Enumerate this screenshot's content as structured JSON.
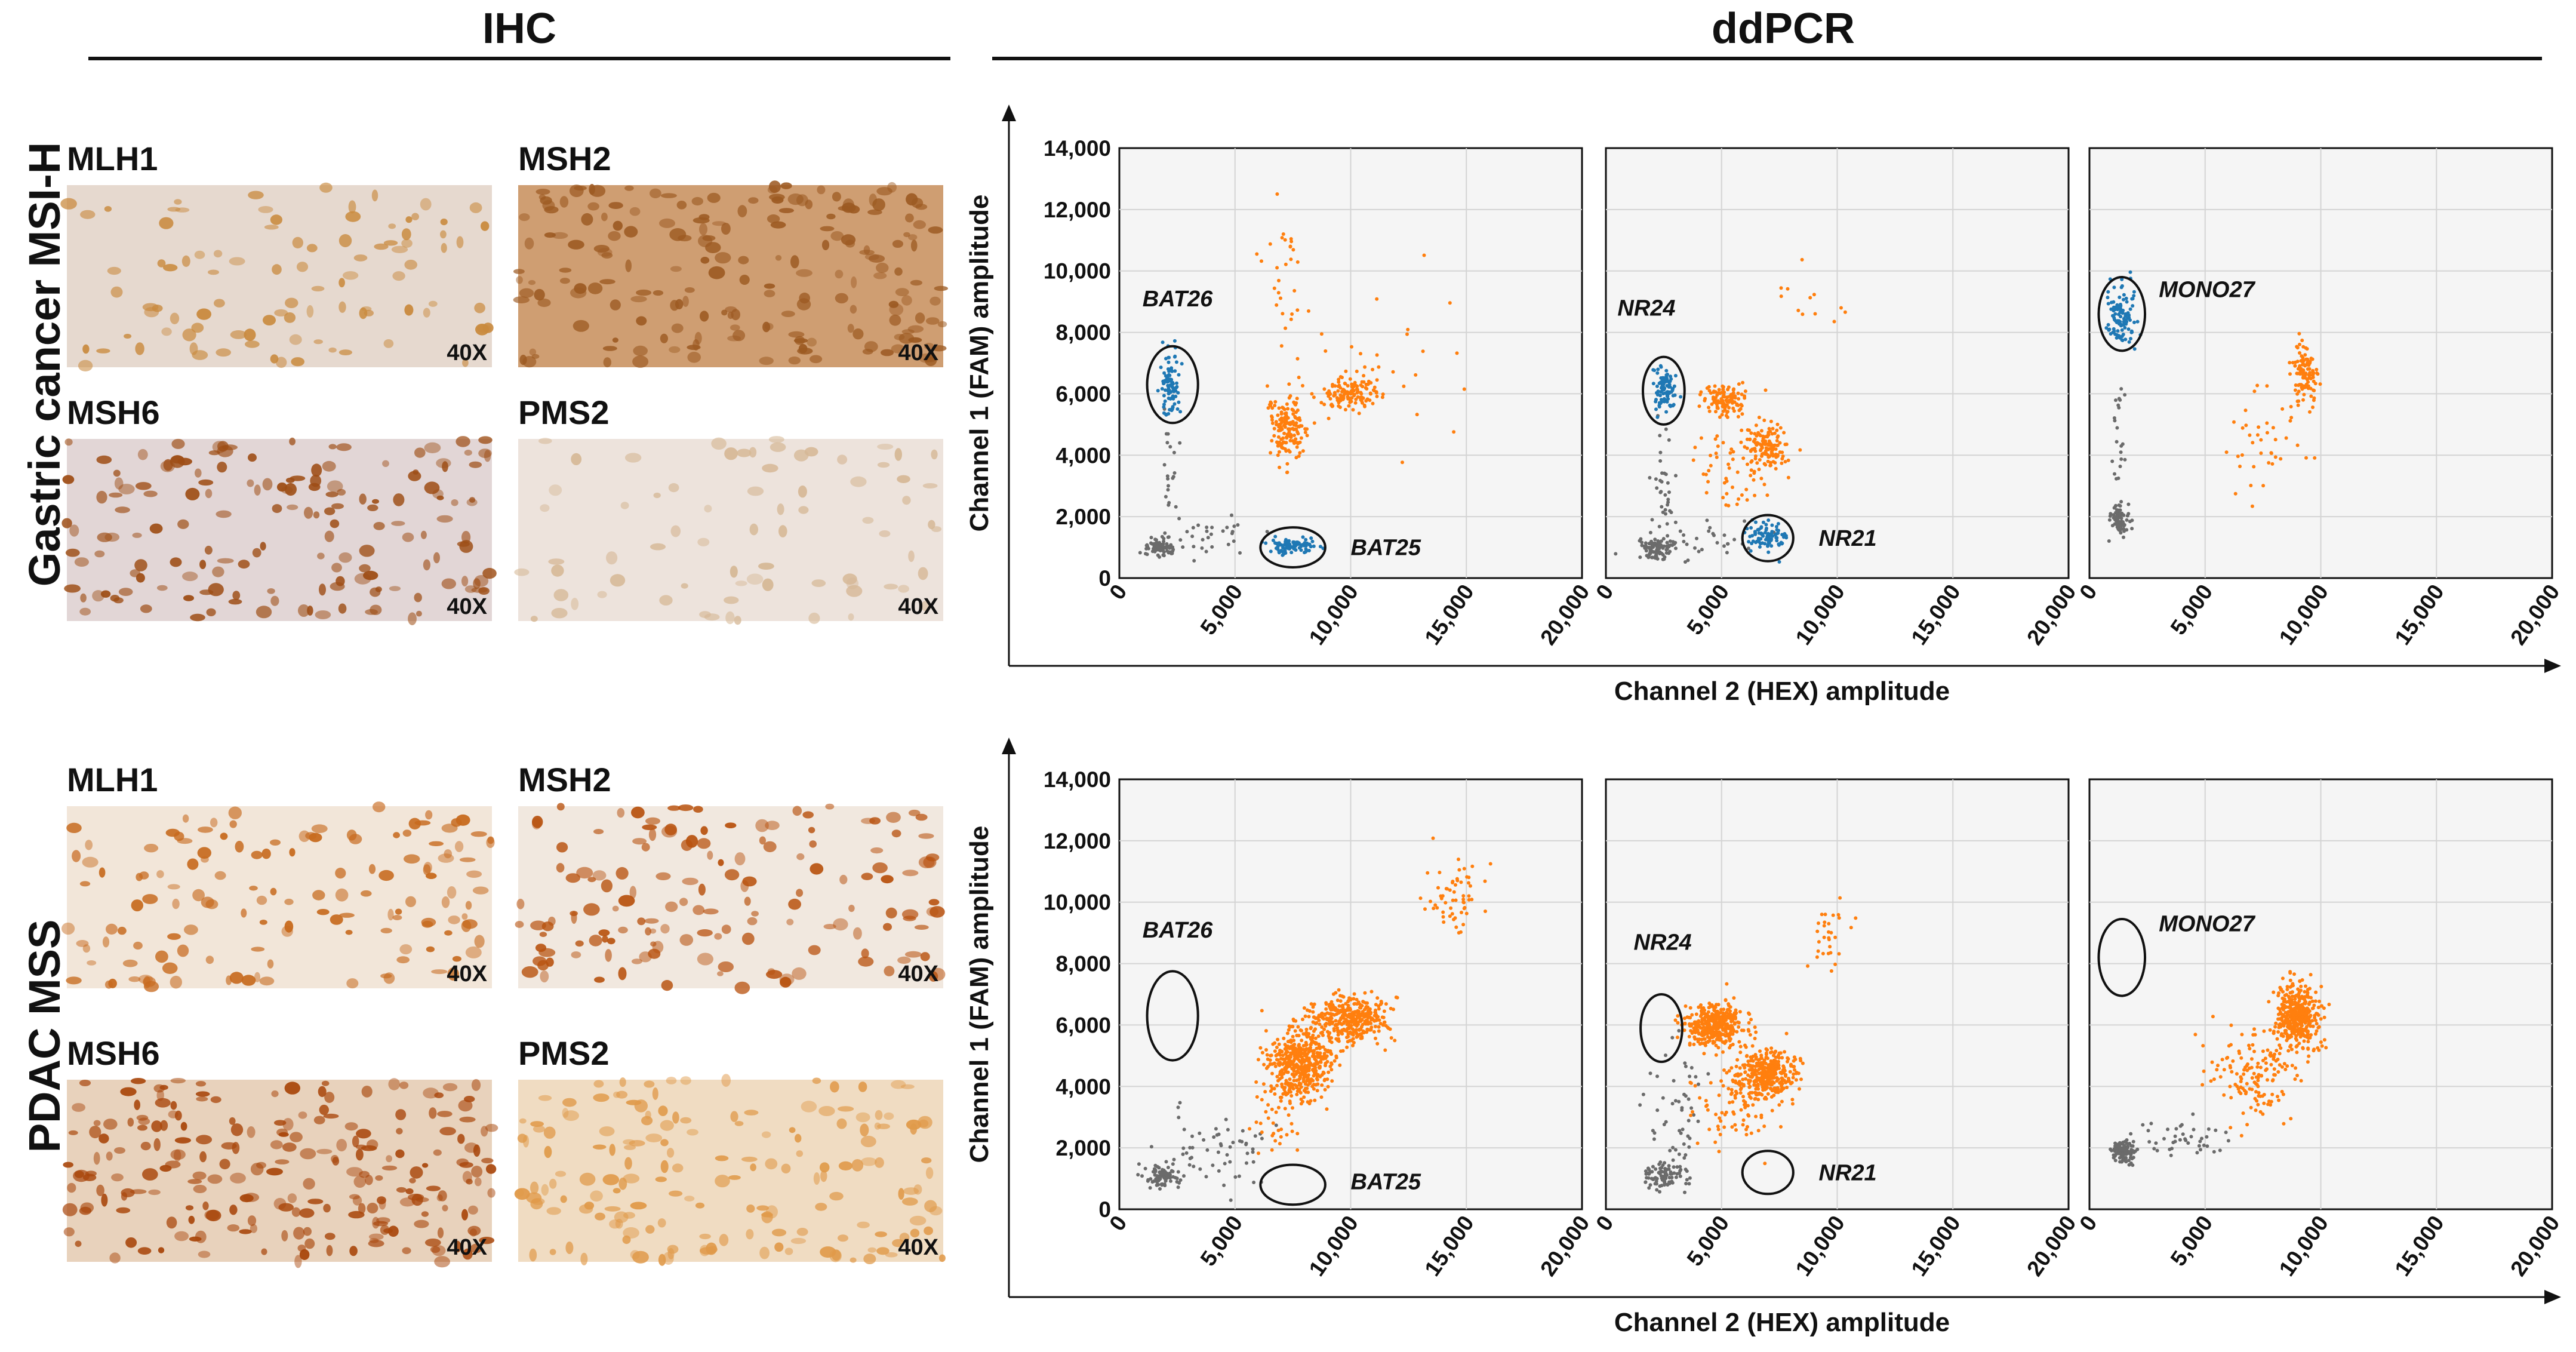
{
  "headers": {
    "ihc": "IHC",
    "ddpcr": "ddPCR"
  },
  "rows": [
    {
      "label": "Gastric cancer MSI-H",
      "ihc": [
        {
          "marker": "MLH1",
          "mag": "40X",
          "base": "#e6d9cf",
          "stain": "#c98a3e",
          "density": 0.25
        },
        {
          "marker": "MSH2",
          "mag": "40X",
          "base": "#cf9e72",
          "stain": "#9c5a22",
          "density": 0.7
        },
        {
          "marker": "MSH6",
          "mag": "40X",
          "base": "#e2d6d6",
          "stain": "#9e4e16",
          "density": 0.55
        },
        {
          "marker": "PMS2",
          "mag": "40X",
          "base": "#ede3dc",
          "stain": "#d6b896",
          "density": 0.15
        }
      ]
    },
    {
      "label": "PDAC MSS",
      "ihc": [
        {
          "marker": "MLH1",
          "mag": "40X",
          "base": "#f2e6d9",
          "stain": "#c76a1e",
          "density": 0.45
        },
        {
          "marker": "MSH2",
          "mag": "40X",
          "base": "#f1e8df",
          "stain": "#b8520f",
          "density": 0.5
        },
        {
          "marker": "MSH6",
          "mag": "40X",
          "base": "#e8d2bc",
          "stain": "#a9470c",
          "density": 0.85
        },
        {
          "marker": "PMS2",
          "mag": "40X",
          "base": "#f0dcc2",
          "stain": "#e09a4a",
          "density": 0.6
        }
      ]
    }
  ],
  "chart_data": [
    {
      "type": "scatter",
      "row": 0,
      "panel": 0,
      "xlabel": "Channel 2 (HEX) amplitude",
      "ylabel": "Channel 1 (FAM) amplitude",
      "xlim": [
        0,
        20000
      ],
      "ylim": [
        0,
        14000
      ],
      "xticks": [
        "0",
        "5,000",
        "10,000",
        "15,000",
        "20,000"
      ],
      "yticks": [
        "0",
        "2,000",
        "4,000",
        "6,000",
        "8,000",
        "10,000",
        "12,000",
        "14,000"
      ],
      "gates": [
        {
          "name": "BAT26",
          "cx": 2300,
          "cy": 6300,
          "rx": 1100,
          "ry": 1250,
          "tx": 1000,
          "ty": 9100
        },
        {
          "name": "BAT25",
          "cx": 7500,
          "cy": 1000,
          "rx": 1400,
          "ry": 650,
          "tx": 10000,
          "ty": 1000
        }
      ],
      "clusters": [
        {
          "color": "#6b6b6b",
          "n": 80,
          "x": 1800,
          "y": 1000,
          "sx": 300,
          "sy": 150
        },
        {
          "color": "#6b6b6b",
          "n": 30,
          "x": 4000,
          "y": 1300,
          "sx": 1200,
          "sy": 400
        },
        {
          "color": "#6b6b6b",
          "n": 20,
          "x": 2200,
          "y": 3500,
          "sx": 200,
          "sy": 800
        },
        {
          "color": "#1f78b4",
          "n": 90,
          "x": 2200,
          "y": 6300,
          "sx": 200,
          "sy": 500
        },
        {
          "color": "#1f78b4",
          "n": 90,
          "x": 7500,
          "y": 1050,
          "sx": 500,
          "sy": 120
        },
        {
          "color": "#ff7f0e",
          "n": 160,
          "x": 7300,
          "y": 4900,
          "sx": 450,
          "sy": 550
        },
        {
          "color": "#ff7f0e",
          "n": 140,
          "x": 10000,
          "y": 6000,
          "sx": 600,
          "sy": 300
        },
        {
          "color": "#ff7f0e",
          "n": 30,
          "x": 7200,
          "y": 9500,
          "sx": 500,
          "sy": 1200
        },
        {
          "color": "#ff7f0e",
          "n": 18,
          "x": 12000,
          "y": 8000,
          "sx": 1800,
          "sy": 1500
        }
      ]
    },
    {
      "type": "scatter",
      "row": 0,
      "panel": 1,
      "xlabel": "Channel 2 (HEX) amplitude",
      "ylabel": "Channel 1 (FAM) amplitude",
      "xlim": [
        0,
        20000
      ],
      "ylim": [
        0,
        14000
      ],
      "xticks": [
        "0",
        "5,000",
        "10,000",
        "15,000",
        "20,000"
      ],
      "yticks": [],
      "gates": [
        {
          "name": "NR24",
          "cx": 2500,
          "cy": 6100,
          "rx": 900,
          "ry": 1100,
          "tx": 500,
          "ty": 8800
        },
        {
          "name": "NR21",
          "cx": 7000,
          "cy": 1300,
          "rx": 1100,
          "ry": 750,
          "tx": 9200,
          "ty": 1300
        }
      ],
      "clusters": [
        {
          "color": "#6b6b6b",
          "n": 80,
          "x": 2200,
          "y": 1000,
          "sx": 400,
          "sy": 180
        },
        {
          "color": "#6b6b6b",
          "n": 40,
          "x": 2500,
          "y": 2800,
          "sx": 300,
          "sy": 1000
        },
        {
          "color": "#6b6b6b",
          "n": 30,
          "x": 4500,
          "y": 1300,
          "sx": 1200,
          "sy": 300
        },
        {
          "color": "#1f78b4",
          "n": 90,
          "x": 2500,
          "y": 6100,
          "sx": 220,
          "sy": 350
        },
        {
          "color": "#1f78b4",
          "n": 90,
          "x": 7000,
          "y": 1300,
          "sx": 450,
          "sy": 250
        },
        {
          "color": "#ff7f0e",
          "n": 120,
          "x": 5200,
          "y": 5800,
          "sx": 450,
          "sy": 250
        },
        {
          "color": "#ff7f0e",
          "n": 130,
          "x": 7000,
          "y": 4300,
          "sx": 500,
          "sy": 350
        },
        {
          "color": "#ff7f0e",
          "n": 50,
          "x": 5800,
          "y": 3300,
          "sx": 900,
          "sy": 600
        },
        {
          "color": "#ff7f0e",
          "n": 12,
          "x": 8500,
          "y": 9000,
          "sx": 800,
          "sy": 600
        }
      ]
    },
    {
      "type": "scatter",
      "row": 0,
      "panel": 2,
      "xlabel": "Channel 2 (HEX) amplitude",
      "ylabel": "Channel 1 (FAM) amplitude",
      "xlim": [
        0,
        20000
      ],
      "ylim": [
        0,
        14000
      ],
      "xticks": [
        "0",
        "5,000",
        "10,000",
        "15,000",
        "20,000"
      ],
      "yticks": [],
      "gates": [
        {
          "name": "MONO27",
          "cx": 1400,
          "cy": 8600,
          "rx": 1000,
          "ry": 1200,
          "tx": 3000,
          "ty": 9400
        }
      ],
      "clusters": [
        {
          "color": "#6b6b6b",
          "n": 80,
          "x": 1300,
          "y": 1900,
          "sx": 200,
          "sy": 250
        },
        {
          "color": "#6b6b6b",
          "n": 25,
          "x": 1300,
          "y": 4500,
          "sx": 150,
          "sy": 1400
        },
        {
          "color": "#1f78b4",
          "n": 110,
          "x": 1400,
          "y": 8600,
          "sx": 280,
          "sy": 500
        },
        {
          "color": "#ff7f0e",
          "n": 110,
          "x": 9300,
          "y": 6600,
          "sx": 300,
          "sy": 450
        },
        {
          "color": "#ff7f0e",
          "n": 40,
          "x": 7500,
          "y": 4200,
          "sx": 800,
          "sy": 800
        }
      ]
    },
    {
      "type": "scatter",
      "row": 1,
      "panel": 0,
      "xlabel": "Channel 2 (HEX) amplitude",
      "ylabel": "Channel 1 (FAM) amplitude",
      "xlim": [
        0,
        20000
      ],
      "ylim": [
        0,
        14000
      ],
      "xticks": [
        "0",
        "5,000",
        "10,000",
        "15,000",
        "20,000"
      ],
      "yticks": [
        "0",
        "2,000",
        "4,000",
        "6,000",
        "8,000",
        "10,000",
        "12,000",
        "14,000"
      ],
      "gates": [
        {
          "name": "BAT26",
          "cx": 2300,
          "cy": 6300,
          "rx": 1100,
          "ry": 1450,
          "tx": 1000,
          "ty": 9100
        },
        {
          "name": "BAT25",
          "cx": 7500,
          "cy": 800,
          "rx": 1400,
          "ry": 650,
          "tx": 10000,
          "ty": 900
        }
      ],
      "clusters": [
        {
          "color": "#6b6b6b",
          "n": 90,
          "x": 1800,
          "y": 1100,
          "sx": 350,
          "sy": 150
        },
        {
          "color": "#6b6b6b",
          "n": 60,
          "x": 4200,
          "y": 1800,
          "sx": 1300,
          "sy": 600
        },
        {
          "color": "#ff7f0e",
          "n": 500,
          "x": 7800,
          "y": 4800,
          "sx": 700,
          "sy": 600
        },
        {
          "color": "#ff7f0e",
          "n": 350,
          "x": 10000,
          "y": 6200,
          "sx": 800,
          "sy": 350
        },
        {
          "color": "#ff7f0e",
          "n": 60,
          "x": 14500,
          "y": 10200,
          "sx": 700,
          "sy": 600
        },
        {
          "color": "#ff7f0e",
          "n": 30,
          "x": 6800,
          "y": 2800,
          "sx": 600,
          "sy": 700
        }
      ]
    },
    {
      "type": "scatter",
      "row": 1,
      "panel": 1,
      "xlabel": "Channel 2 (HEX) amplitude",
      "ylabel": "Channel 1 (FAM) amplitude",
      "xlim": [
        0,
        20000
      ],
      "ylim": [
        0,
        14000
      ],
      "xticks": [
        "0",
        "5,000",
        "10,000",
        "15,000",
        "20,000"
      ],
      "yticks": [],
      "gates": [
        {
          "name": "NR24",
          "cx": 2400,
          "cy": 5900,
          "rx": 900,
          "ry": 1100,
          "tx": 1200,
          "ty": 8700
        },
        {
          "name": "NR21",
          "cx": 7000,
          "cy": 1200,
          "rx": 1100,
          "ry": 700,
          "tx": 9200,
          "ty": 1200
        }
      ],
      "clusters": [
        {
          "color": "#6b6b6b",
          "n": 90,
          "x": 2500,
          "y": 1100,
          "sx": 400,
          "sy": 200
        },
        {
          "color": "#6b6b6b",
          "n": 50,
          "x": 3000,
          "y": 3200,
          "sx": 600,
          "sy": 1000
        },
        {
          "color": "#ff7f0e",
          "n": 400,
          "x": 4700,
          "y": 6000,
          "sx": 600,
          "sy": 350
        },
        {
          "color": "#ff7f0e",
          "n": 350,
          "x": 6900,
          "y": 4400,
          "sx": 650,
          "sy": 400
        },
        {
          "color": "#ff7f0e",
          "n": 80,
          "x": 5700,
          "y": 3300,
          "sx": 900,
          "sy": 700
        },
        {
          "color": "#ff7f0e",
          "n": 30,
          "x": 9600,
          "y": 9000,
          "sx": 500,
          "sy": 700
        }
      ]
    },
    {
      "type": "scatter",
      "row": 1,
      "panel": 2,
      "xlabel": "Channel 2 (HEX) amplitude",
      "ylabel": "Channel 1 (FAM) amplitude",
      "xlim": [
        0,
        20000
      ],
      "ylim": [
        0,
        14000
      ],
      "xticks": [
        "0",
        "5,000",
        "10,000",
        "15,000",
        "20,000"
      ],
      "yticks": [],
      "gates": [
        {
          "name": "MONO27",
          "cx": 1400,
          "cy": 8200,
          "rx": 1000,
          "ry": 1250,
          "tx": 3000,
          "ty": 9300
        }
      ],
      "clusters": [
        {
          "color": "#6b6b6b",
          "n": 100,
          "x": 1500,
          "y": 1900,
          "sx": 250,
          "sy": 200
        },
        {
          "color": "#6b6b6b",
          "n": 40,
          "x": 3800,
          "y": 2400,
          "sx": 1000,
          "sy": 300
        },
        {
          "color": "#ff7f0e",
          "n": 400,
          "x": 9000,
          "y": 6300,
          "sx": 450,
          "sy": 500
        },
        {
          "color": "#ff7f0e",
          "n": 150,
          "x": 7200,
          "y": 4300,
          "sx": 900,
          "sy": 700
        }
      ]
    }
  ]
}
